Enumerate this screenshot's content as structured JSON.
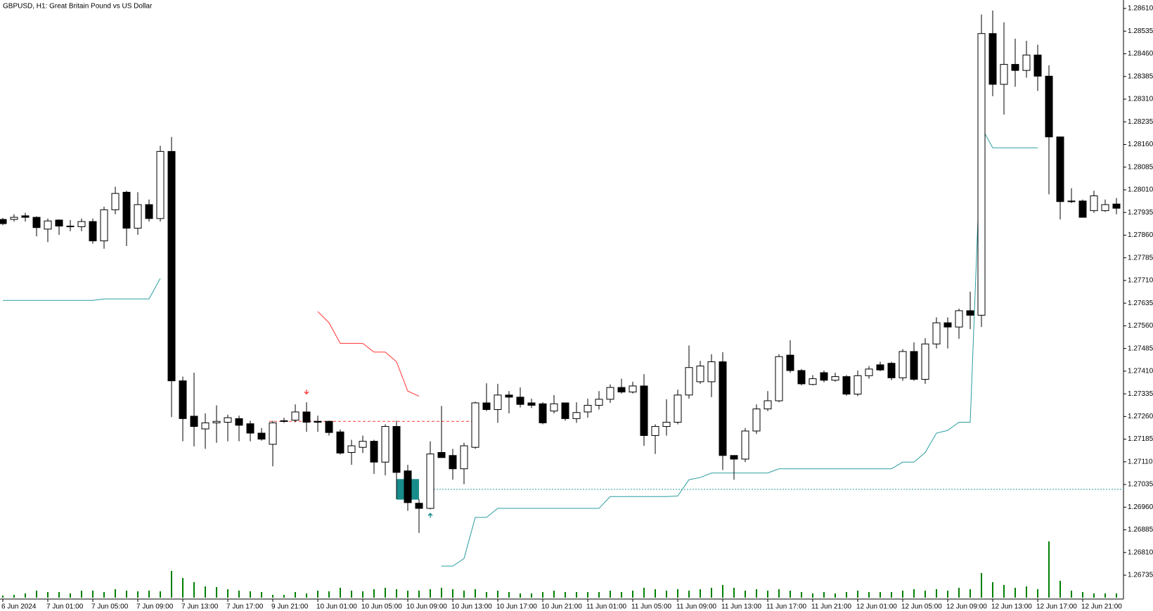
{
  "chart_data": {
    "type": "candlestick",
    "title": "GBPUSD, H1:  Great Britain Pound vs US Dollar",
    "categories": [
      "6 Jun 2024",
      null,
      null,
      null,
      "7 Jun 01:00",
      null,
      null,
      null,
      "7 Jun 05:00",
      null,
      null,
      null,
      "7 Jun 09:00",
      null,
      null,
      null,
      "7 Jun 13:00",
      null,
      null,
      null,
      "7 Jun 17:00",
      null,
      null,
      null,
      "9 Jun 21:00",
      null,
      null,
      null,
      "10 Jun 01:00",
      null,
      null,
      null,
      "10 Jun 05:00",
      null,
      null,
      null,
      "10 Jun 09:00",
      null,
      null,
      null,
      "10 Jun 13:00",
      null,
      null,
      null,
      "10 Jun 17:00",
      null,
      null,
      null,
      "10 Jun 21:00",
      null,
      null,
      null,
      "11 Jun 01:00",
      null,
      null,
      null,
      "11 Jun 05:00",
      null,
      null,
      null,
      "11 Jun 09:00",
      null,
      null,
      null,
      "11 Jun 13:00",
      null,
      null,
      null,
      "11 Jun 17:00",
      null,
      null,
      null,
      "11 Jun 21:00",
      null,
      null,
      null,
      "12 Jun 01:00",
      null,
      null,
      null,
      "12 Jun 05:00",
      null,
      null,
      null,
      "12 Jun 09:00",
      null,
      null,
      null,
      "12 Jun 13:00",
      null,
      null,
      null,
      "12 Jun 17:00",
      null,
      null,
      null,
      "12 Jun 21:00",
      null,
      null,
      null
    ],
    "open": [
      1.27912,
      1.27912,
      1.27924,
      1.27919,
      1.2788,
      1.2791,
      1.2789,
      1.27888,
      1.27905,
      1.27841,
      1.27944,
      1.28002,
      1.27883,
      1.27961,
      1.27915,
      1.28137,
      1.27378,
      1.27261,
      1.27219,
      1.27239,
      1.27241,
      1.27253,
      1.27236,
      1.27205,
      1.27168,
      1.27244,
      1.27248,
      1.27275,
      1.27244,
      1.27244,
      1.27209,
      1.27141,
      1.27158,
      1.27178,
      1.27109,
      1.27227,
      1.2708,
      1.26973,
      1.26956,
      1.27141,
      1.27131,
      1.27087,
      1.27158,
      1.27305,
      1.27283,
      1.27331,
      1.27324,
      1.27305,
      1.27302,
      1.27278,
      1.27305,
      1.27253,
      1.27275,
      1.27297,
      1.27317,
      1.27356,
      1.27341,
      1.27361,
      1.27197,
      1.27227,
      1.27241,
      1.27331,
      1.27375,
      1.27375,
      1.27441,
      1.27131,
      1.27119,
      1.27212,
      1.27285,
      1.27312,
      1.27463,
      1.27412,
      1.27366,
      1.27405,
      1.2738,
      1.27392,
      1.27334,
      1.27395,
      1.27431,
      1.27436,
      1.27388,
      1.27475,
      1.27383,
      1.275,
      1.2757,
      1.27556,
      1.2761,
      1.27595,
      1.28527,
      1.28359,
      1.28425,
      1.28405,
      1.28456,
      1.28386,
      1.28185,
      1.27973,
      1.27973,
      1.27941,
      1.27941,
      1.27963
    ],
    "high": [
      1.27917,
      1.27929,
      1.27934,
      1.27922,
      1.27915,
      1.27912,
      1.2791,
      1.27915,
      1.27915,
      1.27954,
      1.2802,
      1.28007,
      1.28002,
      1.27978,
      1.28156,
      1.28185,
      1.27392,
      1.27405,
      1.2727,
      1.27297,
      1.27266,
      1.27263,
      1.27246,
      1.27222,
      1.27246,
      1.27256,
      1.273,
      1.27307,
      1.27263,
      1.27246,
      1.27217,
      1.27183,
      1.27197,
      1.27183,
      1.27234,
      1.27246,
      1.271,
      1.26987,
      1.27178,
      1.27295,
      1.27153,
      1.27173,
      1.27309,
      1.2737,
      1.27368,
      1.27344,
      1.27356,
      1.27319,
      1.27307,
      1.27331,
      1.27305,
      1.27307,
      1.27319,
      1.27344,
      1.27366,
      1.27385,
      1.27375,
      1.274,
      1.27234,
      1.27317,
      1.27349,
      1.27495,
      1.27444,
      1.27466,
      1.27473,
      1.27131,
      1.27222,
      1.273,
      1.27344,
      1.27466,
      1.27512,
      1.27417,
      1.27397,
      1.27412,
      1.27405,
      1.27397,
      1.27412,
      1.27427,
      1.27441,
      1.27441,
      1.27483,
      1.27505,
      1.27519,
      1.27588,
      1.27588,
      1.27617,
      1.27673,
      1.2859,
      1.28603,
      1.28564,
      1.2851,
      1.28503,
      1.2849,
      1.28422,
      1.28185,
      1.28015,
      1.27978,
      1.28007,
      1.27978,
      1.27983
    ],
    "low": [
      1.27893,
      1.27905,
      1.27905,
      1.27856,
      1.27837,
      1.27861,
      1.27873,
      1.27873,
      1.27832,
      1.27815,
      1.27929,
      1.27824,
      1.27861,
      1.27905,
      1.27905,
      1.27258,
      1.27178,
      1.27161,
      1.27153,
      1.27173,
      1.27178,
      1.27178,
      1.27178,
      1.2718,
      1.27095,
      1.27239,
      1.27241,
      1.27209,
      1.27209,
      1.27197,
      1.27134,
      1.271,
      1.27139,
      1.2707,
      1.27065,
      1.26987,
      1.26948,
      1.26875,
      1.26953,
      1.27126,
      1.27051,
      1.27036,
      1.27153,
      1.27278,
      1.27239,
      1.2727,
      1.2729,
      1.27288,
      1.27234,
      1.2727,
      1.27246,
      1.27239,
      1.27256,
      1.27283,
      1.27305,
      1.27336,
      1.27336,
      1.27163,
      1.27136,
      1.27197,
      1.27234,
      1.27319,
      1.27368,
      1.27324,
      1.27083,
      1.27051,
      1.27109,
      1.27202,
      1.27278,
      1.27307,
      1.27405,
      1.27363,
      1.27363,
      1.27373,
      1.27375,
      1.27329,
      1.27327,
      1.27385,
      1.2741,
      1.2738,
      1.27378,
      1.27378,
      1.27368,
      1.27485,
      1.27485,
      1.27517,
      1.27549,
      1.27556,
      1.2832,
      1.28259,
      1.28351,
      1.28381,
      1.28337,
      1.27995,
      1.27912,
      1.27966,
      1.27919,
      1.27934,
      1.27937,
      1.27929
    ],
    "close": [
      1.27898,
      1.27919,
      1.27919,
      1.27885,
      1.27907,
      1.2789,
      1.27888,
      1.27905,
      1.27841,
      1.27944,
      1.27998,
      1.27883,
      1.27961,
      1.27915,
      1.28137,
      1.27378,
      1.27253,
      1.27227,
      1.27239,
      1.27244,
      1.27256,
      1.27231,
      1.27205,
      1.27185,
      1.27239,
      1.27246,
      1.27275,
      1.27241,
      1.27241,
      1.27207,
      1.27139,
      1.27163,
      1.27178,
      1.27109,
      1.27227,
      1.27075,
      1.26975,
      1.26956,
      1.27136,
      1.27124,
      1.27087,
      1.27163,
      1.27305,
      1.27283,
      1.27331,
      1.27324,
      1.273,
      1.27297,
      1.27239,
      1.27302,
      1.27253,
      1.27273,
      1.27297,
      1.27317,
      1.27356,
      1.27341,
      1.27361,
      1.27197,
      1.27227,
      1.27241,
      1.27331,
      1.27422,
      1.27427,
      1.27441,
      1.27131,
      1.27119,
      1.27212,
      1.27285,
      1.27312,
      1.27458,
      1.27412,
      1.27368,
      1.27385,
      1.2738,
      1.27392,
      1.27334,
      1.27395,
      1.27417,
      1.27414,
      1.27388,
      1.27475,
      1.27383,
      1.275,
      1.2757,
      1.27556,
      1.2761,
      1.27595,
      1.28527,
      1.28359,
      1.28425,
      1.28405,
      1.28456,
      1.28386,
      1.28185,
      1.27971,
      1.27971,
      1.27919,
      1.2799,
      1.27961,
      1.27949
    ],
    "volume": [
      3,
      4,
      6,
      10,
      8,
      8,
      6,
      10,
      10,
      8,
      12,
      10,
      9,
      10,
      9,
      38,
      28,
      22,
      16,
      15,
      12,
      10,
      9,
      8,
      4,
      4,
      8,
      6,
      10,
      9,
      14,
      10,
      9,
      12,
      14,
      12,
      10,
      10,
      12,
      14,
      12,
      10,
      12,
      8,
      10,
      8,
      6,
      6,
      8,
      10,
      8,
      8,
      8,
      8,
      10,
      8,
      10,
      14,
      12,
      10,
      12,
      10,
      12,
      14,
      18,
      14,
      10,
      12,
      10,
      12,
      10,
      8,
      6,
      8,
      6,
      8,
      10,
      8,
      8,
      8,
      10,
      12,
      10,
      12,
      10,
      14,
      12,
      35,
      22,
      18,
      14,
      16,
      12,
      80,
      24,
      10,
      8,
      6,
      6,
      6
    ],
    "volume_color": "#008000",
    "bull_color": "#ffffff",
    "bear_color": "#000000",
    "overlays": [
      {
        "color": "#2a9d9f",
        "values": [
          1.27644,
          1.27644,
          1.27644,
          1.27644,
          1.27644,
          1.27644,
          1.27644,
          1.27644,
          1.27644,
          1.27649,
          1.27649,
          1.27649,
          1.27649,
          1.27649,
          1.27717,
          null,
          null,
          null,
          null,
          null,
          null,
          null,
          null,
          null,
          null,
          null,
          null,
          null,
          null,
          null,
          null,
          null,
          null,
          null,
          null,
          null,
          null,
          null,
          null,
          1.26765,
          1.26765,
          1.2679,
          1.26926,
          1.26926,
          1.26956,
          1.26956,
          1.26956,
          1.26956,
          1.26956,
          1.26956,
          1.26956,
          1.26956,
          1.26956,
          1.26956,
          1.26995,
          1.26995,
          1.26995,
          1.26995,
          1.26995,
          1.26995,
          1.26997,
          1.27051,
          1.27058,
          1.27073,
          1.27073,
          1.27073,
          1.27073,
          1.27073,
          1.27073,
          1.27087,
          1.27087,
          1.27087,
          1.27087,
          1.27087,
          1.27087,
          1.27087,
          1.27087,
          1.27087,
          1.27087,
          1.27087,
          1.27109,
          1.27109,
          1.27141,
          1.27205,
          1.27214,
          1.27241,
          1.27241,
          1.28217,
          1.28149,
          1.28149,
          1.28149,
          1.28149,
          1.28149,
          null,
          null,
          null,
          null,
          null,
          null,
          null
        ]
      },
      {
        "color": "#ff3333",
        "values": [
          null,
          null,
          null,
          null,
          null,
          null,
          null,
          null,
          null,
          null,
          null,
          null,
          null,
          null,
          null,
          null,
          null,
          null,
          null,
          null,
          null,
          null,
          null,
          null,
          null,
          null,
          null,
          null,
          1.27607,
          1.2757,
          1.27502,
          1.27502,
          1.27502,
          1.27473,
          1.27473,
          1.27441,
          1.27344,
          1.27327,
          null,
          null,
          null,
          null,
          null,
          null,
          null,
          null,
          null,
          null,
          null,
          null,
          null,
          null,
          null,
          null,
          null,
          null,
          null,
          null,
          null,
          null,
          null,
          null,
          null,
          null,
          null,
          null,
          null,
          null,
          null,
          null,
          null,
          null,
          null,
          null,
          null,
          null,
          null,
          null,
          null,
          null,
          null,
          null,
          null,
          null,
          null,
          null,
          null,
          null,
          null,
          null,
          null,
          null,
          null,
          null,
          null,
          null,
          null,
          null,
          null,
          null
        ]
      }
    ],
    "levels": [
      {
        "value": 1.27244,
        "color": "#ff3333",
        "dash": "dashed"
      },
      {
        "value": 1.27019,
        "color": "#2a9d9f",
        "dash": "dotted"
      }
    ],
    "zone": {
      "top": 1.27053,
      "bottom": 1.26985,
      "color": "#008080"
    },
    "ylim": [
      1.26656,
      1.28638
    ],
    "yticks": [
      1.26735,
      {
        "value": 1.2681,
        "label": "1.26810"
      },
      1.26885,
      {
        "value": 1.2696,
        "label": "1.26960"
      },
      1.27035,
      {
        "value": 1.2711,
        "label": "1.27110"
      },
      1.27185,
      {
        "value": 1.2726,
        "label": "1.27260"
      },
      1.27335,
      {
        "value": 1.2741,
        "label": "1.27410"
      },
      1.27485,
      {
        "value": 1.2756,
        "label": "1.27560"
      },
      1.27635,
      {
        "value": 1.2771,
        "label": "1.27710"
      },
      1.27785,
      {
        "value": 1.2786,
        "label": "1.27860"
      },
      1.27935,
      {
        "value": 1.2801,
        "label": "1.28010"
      },
      1.28085,
      {
        "value": 1.2816,
        "label": "1.28160"
      },
      1.28235,
      {
        "value": 1.2831,
        "label": "1.28310"
      },
      1.28385,
      {
        "value": 1.2846,
        "label": "1.28460"
      },
      1.28535,
      {
        "value": 1.2861,
        "label": "1.28610"
      }
    ],
    "grid": false
  }
}
